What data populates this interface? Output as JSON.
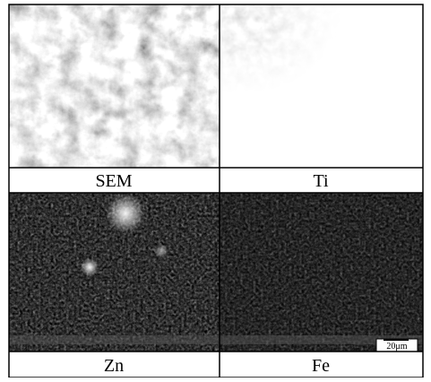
{
  "panels": [
    {
      "label": "SEM"
    },
    {
      "label": "Ti"
    },
    {
      "label": "Zn"
    },
    {
      "label": "Fe"
    }
  ],
  "scale_bar": "20μm"
}
